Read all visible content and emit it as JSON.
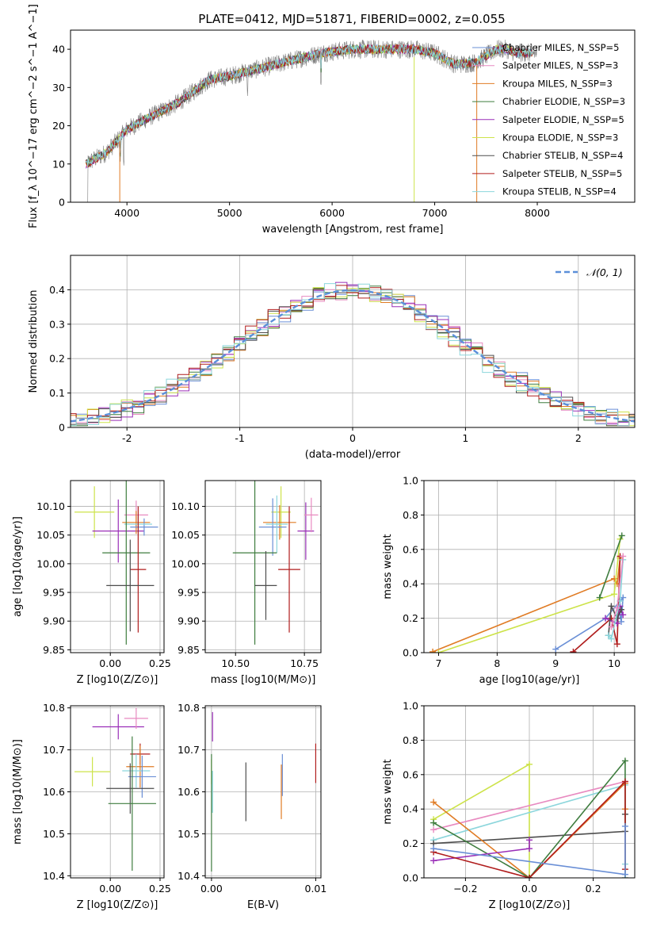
{
  "figure": {
    "title": "PLATE=0412, MJD=51871, FIBERID=0002, z=0.055"
  },
  "colors": {
    "Chabrier MILES": "#6a8fd6",
    "Salpeter MILES": "#e88ac0",
    "Kroupa MILES": "#e07b24",
    "Chabrier ELODIE": "#3f7d3f",
    "Salpeter ELODIE": "#9a2fb8",
    "Kroupa ELODIE": "#cde34a",
    "Chabrier STELIB": "#4d4d4d",
    "Salpeter STELIB": "#b01d1d",
    "Kroupa STELIB": "#8cd6dc",
    "data": "#808080",
    "gaussian": "#5b8fd9"
  },
  "chart_data": [
    {
      "id": "spectrum",
      "type": "line",
      "title": "PLATE=0412, MJD=51871, FIBERID=0002, z=0.055",
      "xlabel": "wavelength [Angstrom, rest frame]",
      "ylabel": "Flux [f_λ 10^−17 erg cm^−2 s^−1 A^−1]",
      "xlim": [
        3450,
        8950
      ],
      "ylim": [
        0,
        45
      ],
      "xticks": [
        4000,
        5000,
        6000,
        7000,
        8000
      ],
      "yticks": [
        0,
        10,
        20,
        30,
        40
      ],
      "continuum": [
        [
          3600,
          10
        ],
        [
          3800,
          13
        ],
        [
          4000,
          19
        ],
        [
          4200,
          22
        ],
        [
          4500,
          26
        ],
        [
          4800,
          32
        ],
        [
          5000,
          33
        ],
        [
          5300,
          35
        ],
        [
          5600,
          37
        ],
        [
          5900,
          39
        ],
        [
          6200,
          40
        ],
        [
          6500,
          40
        ],
        [
          6800,
          40
        ],
        [
          7000,
          39
        ],
        [
          7200,
          36
        ],
        [
          7400,
          36.5
        ],
        [
          7600,
          40
        ],
        [
          7700,
          40
        ],
        [
          7800,
          39
        ],
        [
          8000,
          39
        ]
      ],
      "legend": [
        {
          "label": "Chabrier MILES, N_SSP=5"
        },
        {
          "label": "Salpeter MILES, N_SSP=3"
        },
        {
          "label": "Kroupa MILES, N_SSP=3"
        },
        {
          "label": "Chabrier ELODIE, N_SSP=3"
        },
        {
          "label": "Salpeter ELODIE, N_SSP=5"
        },
        {
          "label": "Kroupa ELODIE, N_SSP=3"
        },
        {
          "label": "Chabrier STELIB, N_SSP=4"
        },
        {
          "label": "Salpeter STELIB, N_SSP=5"
        },
        {
          "label": "Kroupa STELIB, N_SSP=4"
        }
      ],
      "legend_placement": "top-right",
      "grid": false
    },
    {
      "id": "residuals",
      "type": "area",
      "xlabel": "(data-model)/error",
      "ylabel": "Normed distribution",
      "xlim": [
        -2.5,
        2.5
      ],
      "ylim": [
        0,
        0.5
      ],
      "xticks": [
        -2,
        -1,
        0,
        1,
        2
      ],
      "yticks": [
        0.0,
        0.1,
        0.2,
        0.3,
        0.4
      ],
      "legend": [
        {
          "label": "𝒩(0, 1)"
        }
      ],
      "legend_placement": "top-right",
      "grid": true
    },
    {
      "id": "age_vs_Z",
      "type": "scatter",
      "xlabel": "Z [log10(Z/Z⊙)]",
      "ylabel": "age  [log10(age/yr)]",
      "xlim": [
        -0.2,
        0.27
      ],
      "ylim": [
        9.845,
        10.145
      ],
      "xticks": [
        0.0,
        0.25
      ],
      "yticks": [
        9.85,
        9.9,
        9.95,
        10.0,
        10.05,
        10.1
      ],
      "xticklabels": [
        "0.00",
        "0.25"
      ],
      "yticklabels": [
        "9.85",
        "9.90",
        "9.95",
        "10.00",
        "10.05",
        "10.10"
      ],
      "grid": true,
      "points": [
        {
          "model": "Kroupa ELODIE",
          "x": -0.08,
          "xerr": 0.1,
          "y": 10.09,
          "yerr": 0.045
        },
        {
          "model": "Salpeter ELODIE",
          "x": 0.04,
          "xerr": 0.13,
          "y": 10.057,
          "yerr": 0.055
        },
        {
          "model": "Salpeter MILES",
          "x": 0.13,
          "xerr": 0.06,
          "y": 10.085,
          "yerr": 0.025
        },
        {
          "model": "Kroupa MILES",
          "x": 0.13,
          "xerr": 0.07,
          "y": 10.072,
          "yerr": 0.02
        },
        {
          "model": "Chabrier MILES",
          "x": 0.17,
          "xerr": 0.07,
          "y": 10.064,
          "yerr": 0.015
        },
        {
          "model": "Kroupa STELIB",
          "x": 0.14,
          "xerr": 0.07,
          "y": 10.069,
          "yerr": 0.015
        },
        {
          "model": "Chabrier ELODIE",
          "x": 0.08,
          "xerr": 0.12,
          "y": 10.019,
          "yerr": 0.16
        },
        {
          "model": "Salpeter STELIB",
          "x": 0.14,
          "xerr": 0.04,
          "y": 9.99,
          "yerr": 0.11
        },
        {
          "model": "Chabrier STELIB",
          "x": 0.1,
          "xerr": 0.12,
          "y": 9.962,
          "yerr": 0.08
        }
      ]
    },
    {
      "id": "age_vs_mass",
      "type": "scatter",
      "xlabel": "mass [log10(M/M⊙)]",
      "ylabel": "",
      "xlim": [
        10.39,
        10.81
      ],
      "ylim": [
        9.845,
        10.145
      ],
      "xticks": [
        10.5,
        10.75
      ],
      "yticks": [
        9.85,
        9.9,
        9.95,
        10.0,
        10.05,
        10.1
      ],
      "xticklabels": [
        "10.50",
        "10.75"
      ],
      "yticklabels": [
        "9.85",
        "9.90",
        "9.95",
        "10.00",
        "10.05",
        "10.10"
      ],
      "grid": true,
      "points": [
        {
          "model": "Kroupa ELODIE",
          "x": 10.665,
          "xerr": 0.035,
          "y": 10.09,
          "yerr": 0.045
        },
        {
          "model": "Salpeter ELODIE",
          "x": 10.755,
          "xerr": 0.03,
          "y": 10.057,
          "yerr": 0.05
        },
        {
          "model": "Salpeter MILES",
          "x": 10.775,
          "xerr": 0.025,
          "y": 10.085,
          "yerr": 0.03
        },
        {
          "model": "Kroupa MILES",
          "x": 10.66,
          "xerr": 0.06,
          "y": 10.072,
          "yerr": 0.03
        },
        {
          "model": "Chabrier MILES",
          "x": 10.635,
          "xerr": 0.05,
          "y": 10.064,
          "yerr": 0.05
        },
        {
          "model": "Kroupa STELIB",
          "x": 10.65,
          "xerr": 0.04,
          "y": 10.069,
          "yerr": 0.05
        },
        {
          "model": "Chabrier ELODIE",
          "x": 10.57,
          "xerr": 0.08,
          "y": 10.019,
          "yerr": 0.16
        },
        {
          "model": "Salpeter STELIB",
          "x": 10.695,
          "xerr": 0.04,
          "y": 9.99,
          "yerr": 0.11
        },
        {
          "model": "Chabrier STELIB",
          "x": 10.61,
          "xerr": 0.04,
          "y": 9.962,
          "yerr": 0.06
        }
      ]
    },
    {
      "id": "weight_vs_age",
      "type": "line",
      "xlabel": "age  [log10(age/yr)]",
      "ylabel": "mass weight",
      "xlim": [
        6.75,
        10.35
      ],
      "ylim": [
        0,
        1
      ],
      "xticks": [
        7,
        8,
        9,
        10
      ],
      "yticks": [
        0,
        0.2,
        0.4,
        0.6,
        0.8,
        1.0
      ],
      "xticklabels": [
        "7",
        "8",
        "9",
        "10"
      ],
      "yticklabels": [
        "0.0",
        "0.2",
        "0.4",
        "0.6",
        "0.8",
        "1.0"
      ],
      "grid": true,
      "series": [
        {
          "model": "Kroupa MILES",
          "x": [
            6.9,
            10.0,
            10.05,
            10.1
          ],
          "y": [
            0.005,
            0.43,
            0.4,
            0.55
          ]
        },
        {
          "model": "Kroupa ELODIE",
          "x": [
            7.0,
            10.0,
            10.1
          ],
          "y": [
            0.0,
            0.34,
            0.66
          ]
        },
        {
          "model": "Chabrier ELODIE",
          "x": [
            9.75,
            10.13
          ],
          "y": [
            0.32,
            0.68
          ]
        },
        {
          "model": "Chabrier MILES",
          "x": [
            9.0,
            9.85,
            10.1,
            10.15,
            10.12,
            10.1
          ],
          "y": [
            0.02,
            0.2,
            0.3,
            0.32,
            0.18,
            0.22
          ]
        },
        {
          "model": "Salpeter STELIB",
          "x": [
            9.3,
            9.95,
            10.05,
            10.1
          ],
          "y": [
            0.005,
            0.2,
            0.05,
            0.56
          ]
        },
        {
          "model": "Salpeter ELODIE",
          "x": [
            9.85,
            10.05,
            10.1,
            10.15
          ],
          "y": [
            0.2,
            0.17,
            0.27,
            0.22
          ]
        },
        {
          "model": "Chabrier STELIB",
          "x": [
            9.9,
            9.95,
            10.05,
            10.12
          ],
          "y": [
            0.1,
            0.27,
            0.2,
            0.25
          ]
        },
        {
          "model": "Kroupa STELIB",
          "x": [
            9.9,
            9.95,
            10.1,
            10.15
          ],
          "y": [
            0.1,
            0.08,
            0.3,
            0.54
          ]
        },
        {
          "model": "Salpeter MILES",
          "x": [
            9.95,
            10.05,
            10.15
          ],
          "y": [
            0.15,
            0.26,
            0.56
          ]
        }
      ]
    },
    {
      "id": "mass_vs_Z",
      "type": "scatter",
      "xlabel": "Z [log10(Z/Z⊙)]",
      "ylabel": "mass [log10(M/M⊙)]",
      "xlim": [
        -0.2,
        0.27
      ],
      "ylim": [
        10.395,
        10.805
      ],
      "xticks": [
        0.0,
        0.25
      ],
      "yticks": [
        10.4,
        10.5,
        10.6,
        10.7,
        10.8
      ],
      "xticklabels": [
        "0.00",
        "0.25"
      ],
      "yticklabels": [
        "10.4",
        "10.5",
        "10.6",
        "10.7",
        "10.8"
      ],
      "grid": true,
      "points": [
        {
          "model": "Salpeter ELODIE",
          "x": 0.04,
          "xerr": 0.13,
          "y": 10.755,
          "yerr": 0.03
        },
        {
          "model": "Salpeter MILES",
          "x": 0.13,
          "xerr": 0.06,
          "y": 10.775,
          "yerr": 0.025
        },
        {
          "model": "Salpeter STELIB",
          "x": 0.15,
          "xerr": 0.05,
          "y": 10.69,
          "yerr": 0.025
        },
        {
          "model": "Kroupa MILES",
          "x": 0.15,
          "xerr": 0.07,
          "y": 10.66,
          "yerr": 0.05
        },
        {
          "model": "Kroupa ELODIE",
          "x": -0.09,
          "xerr": 0.09,
          "y": 10.648,
          "yerr": 0.035
        },
        {
          "model": "Kroupa STELIB",
          "x": 0.13,
          "xerr": 0.07,
          "y": 10.65,
          "yerr": 0.04
        },
        {
          "model": "Chabrier MILES",
          "x": 0.16,
          "xerr": 0.07,
          "y": 10.636,
          "yerr": 0.05
        },
        {
          "model": "Chabrier STELIB",
          "x": 0.1,
          "xerr": 0.12,
          "y": 10.608,
          "yerr": 0.06
        },
        {
          "model": "Chabrier ELODIE",
          "x": 0.11,
          "xerr": 0.12,
          "y": 10.572,
          "yerr": 0.16
        }
      ]
    },
    {
      "id": "mass_vs_ebv",
      "type": "scatter",
      "xlabel": "E(B-V)",
      "ylabel": "",
      "xlim": [
        -0.0006,
        0.0105
      ],
      "ylim": [
        10.395,
        10.805
      ],
      "xticks": [
        0.0,
        0.01
      ],
      "yticks": [
        10.4,
        10.5,
        10.6,
        10.7,
        10.8
      ],
      "xticklabels": [
        "0.00",
        "0.01"
      ],
      "yticklabels": [
        "10.4",
        "10.5",
        "10.6",
        "10.7",
        "10.8"
      ],
      "grid": true,
      "points": [
        {
          "model": "Salpeter ELODIE",
          "x": 0.0001,
          "xerr": 0,
          "y": 10.755,
          "yerr": 0.035
        },
        {
          "model": "Kroupa ELODIE",
          "x": 0.0,
          "xerr": 0,
          "y": 10.648,
          "yerr": 0.03
        },
        {
          "model": "Chabrier ELODIE",
          "x": 0.0,
          "xerr": 0,
          "y": 10.55,
          "yerr": 0.14
        },
        {
          "model": "Kroupa STELIB",
          "x": 0.0001,
          "xerr": 0,
          "y": 10.6,
          "yerr": 0.05
        },
        {
          "model": "Chabrier STELIB",
          "x": 0.0033,
          "xerr": 0,
          "y": 10.6,
          "yerr": 0.07
        },
        {
          "model": "Chabrier MILES",
          "x": 0.0068,
          "xerr": 0,
          "y": 10.64,
          "yerr": 0.05
        },
        {
          "model": "Kroupa MILES",
          "x": 0.0067,
          "xerr": 0,
          "y": 10.6,
          "yerr": 0.065
        },
        {
          "model": "Salpeter STELIB",
          "x": 0.01,
          "xerr": 0,
          "y": 10.668,
          "yerr": 0.047
        }
      ]
    },
    {
      "id": "weight_vs_Z",
      "type": "line",
      "xlabel": "Z [log10(Z/Z⊙)]",
      "ylabel": "mass weight",
      "xlim": [
        -0.33,
        0.33
      ],
      "ylim": [
        0,
        1
      ],
      "xticks": [
        -0.2,
        0.0,
        0.2
      ],
      "yticks": [
        0,
        0.2,
        0.4,
        0.6,
        0.8,
        1.0
      ],
      "xticklabels": [
        "−0.2",
        "0.0",
        "0.2"
      ],
      "yticklabels": [
        "0.0",
        "0.2",
        "0.4",
        "0.6",
        "0.8",
        "1.0"
      ],
      "grid": true,
      "series": [
        {
          "model": "Kroupa ELODIE",
          "x": [
            -0.3,
            0.0,
            0.0
          ],
          "y": [
            0.34,
            0.66,
            0.0
          ]
        },
        {
          "model": "Salpeter MILES",
          "x": [
            -0.3,
            0.3
          ],
          "y": [
            0.28,
            0.56
          ]
        },
        {
          "model": "Kroupa STELIB",
          "x": [
            -0.3,
            0.3,
            0.3
          ],
          "y": [
            0.22,
            0.54,
            0.08
          ]
        },
        {
          "model": "Chabrier STELIB",
          "x": [
            -0.3,
            0.3,
            0.3
          ],
          "y": [
            0.2,
            0.27,
            0.37
          ]
        },
        {
          "model": "Kroupa MILES",
          "x": [
            -0.3,
            0.0,
            0.3,
            0.3
          ],
          "y": [
            0.44,
            0.0,
            0.55,
            0.4
          ]
        },
        {
          "model": "Chabrier ELODIE",
          "x": [
            -0.3,
            0.0,
            0.3,
            0.3
          ],
          "y": [
            0.32,
            0.0,
            0.68,
            0.0
          ]
        },
        {
          "model": "Salpeter ELODIE",
          "x": [
            -0.3,
            0.0,
            0.0
          ],
          "y": [
            0.1,
            0.17,
            0.22
          ]
        },
        {
          "model": "Salpeter STELIB",
          "x": [
            -0.3,
            0.0,
            0.3,
            0.3
          ],
          "y": [
            0.15,
            0.0,
            0.56,
            0.05
          ]
        },
        {
          "model": "Chabrier MILES",
          "x": [
            -0.3,
            0.3,
            0.3
          ],
          "y": [
            0.17,
            0.02,
            0.3
          ]
        }
      ]
    }
  ]
}
